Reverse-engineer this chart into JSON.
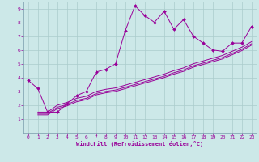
{
  "xlabel": "Windchill (Refroidissement éolien,°C)",
  "bg_color": "#cce8e8",
  "grid_color": "#aacccc",
  "line_color": "#990099",
  "xlim": [
    -0.5,
    23.5
  ],
  "ylim": [
    0,
    9.5
  ],
  "xticks": [
    0,
    1,
    2,
    3,
    4,
    5,
    6,
    7,
    8,
    9,
    10,
    11,
    12,
    13,
    14,
    15,
    16,
    17,
    18,
    19,
    20,
    21,
    22,
    23
  ],
  "yticks": [
    1,
    2,
    3,
    4,
    5,
    6,
    7,
    8,
    9
  ],
  "main_x": [
    0,
    1,
    2,
    3,
    4,
    5,
    6,
    7,
    8,
    9,
    10,
    11,
    12,
    13,
    14,
    15,
    16,
    17,
    18,
    19,
    20,
    21,
    22,
    23
  ],
  "main_y": [
    3.8,
    3.2,
    1.5,
    1.5,
    2.1,
    2.7,
    3.0,
    4.4,
    4.6,
    5.0,
    7.4,
    9.2,
    8.5,
    8.0,
    8.8,
    7.5,
    8.2,
    7.0,
    6.5,
    6.0,
    5.9,
    6.5,
    6.5,
    7.7
  ],
  "line1_x": [
    1,
    2,
    3,
    4,
    5,
    6,
    7,
    8,
    9,
    10,
    11,
    12,
    13,
    14,
    15,
    16,
    17,
    18,
    19,
    20,
    21,
    22,
    23
  ],
  "line1_y": [
    1.5,
    1.5,
    2.0,
    2.2,
    2.5,
    2.65,
    3.0,
    3.15,
    3.25,
    3.45,
    3.65,
    3.85,
    4.05,
    4.25,
    4.5,
    4.7,
    5.0,
    5.2,
    5.4,
    5.6,
    5.9,
    6.2,
    6.6
  ],
  "line2_x": [
    1,
    2,
    3,
    4,
    5,
    6,
    7,
    8,
    9,
    10,
    11,
    12,
    13,
    14,
    15,
    16,
    17,
    18,
    19,
    20,
    21,
    22,
    23
  ],
  "line2_y": [
    1.4,
    1.4,
    1.85,
    2.05,
    2.35,
    2.5,
    2.85,
    3.0,
    3.1,
    3.3,
    3.5,
    3.7,
    3.9,
    4.1,
    4.35,
    4.55,
    4.85,
    5.05,
    5.25,
    5.45,
    5.75,
    6.05,
    6.45
  ],
  "line3_x": [
    1,
    2,
    3,
    4,
    5,
    6,
    7,
    8,
    9,
    10,
    11,
    12,
    13,
    14,
    15,
    16,
    17,
    18,
    19,
    20,
    21,
    22,
    23
  ],
  "line3_y": [
    1.3,
    1.3,
    1.75,
    1.95,
    2.25,
    2.4,
    2.75,
    2.9,
    3.0,
    3.2,
    3.4,
    3.6,
    3.8,
    4.0,
    4.25,
    4.45,
    4.75,
    4.95,
    5.15,
    5.35,
    5.65,
    5.95,
    6.35
  ]
}
